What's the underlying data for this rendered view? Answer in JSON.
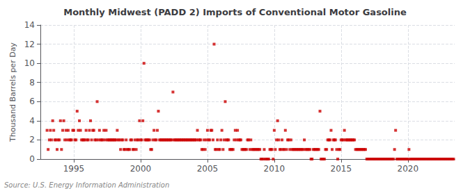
{
  "chart_data": {
    "type": "scatter",
    "title": "Monthly Midwest (PADD 2) Imports of Conventional Motor Gasoline",
    "ylabel": "Thousand Barrels per Day",
    "annotations": [
      "Source: U.S. Energy Information Administration"
    ],
    "xlim": [
      1992.5,
      2023.5
    ],
    "xticks": [
      1995,
      2000,
      2005,
      2010,
      2015,
      2020
    ],
    "ylim": [
      0,
      14
    ],
    "yticks": [
      0,
      2,
      4,
      6,
      8,
      10,
      12,
      14
    ],
    "grid": true,
    "color": "#cc0000",
    "marker": "square",
    "x": [
      1993.0,
      1993.08,
      1993.17,
      1993.25,
      1993.33,
      1993.42,
      1993.5,
      1993.58,
      1993.67,
      1993.75,
      1993.83,
      1993.92,
      1994.0,
      1994.08,
      1994.17,
      1994.25,
      1994.33,
      1994.42,
      1994.5,
      1994.58,
      1994.67,
      1994.75,
      1994.83,
      1994.92,
      1995.0,
      1995.08,
      1995.17,
      1995.25,
      1995.33,
      1995.42,
      1995.5,
      1995.58,
      1995.67,
      1995.75,
      1995.83,
      1995.92,
      1996.0,
      1996.08,
      1996.17,
      1996.25,
      1996.33,
      1996.42,
      1996.5,
      1996.58,
      1996.67,
      1996.75,
      1996.83,
      1996.92,
      1997.0,
      1997.08,
      1997.17,
      1997.25,
      1997.33,
      1997.42,
      1997.5,
      1997.58,
      1997.67,
      1997.75,
      1997.83,
      1997.92,
      1998.0,
      1998.08,
      1998.17,
      1998.25,
      1998.33,
      1998.42,
      1998.5,
      1998.58,
      1998.67,
      1998.75,
      1998.83,
      1998.92,
      1999.0,
      1999.08,
      1999.17,
      1999.25,
      1999.33,
      1999.42,
      1999.5,
      1999.58,
      1999.67,
      1999.75,
      1999.83,
      1999.92,
      2000.0,
      2000.08,
      2000.17,
      2000.25,
      2000.33,
      2000.42,
      2000.5,
      2000.58,
      2000.67,
      2000.75,
      2000.83,
      2000.92,
      2001.0,
      2001.08,
      2001.17,
      2001.25,
      2001.33,
      2001.42,
      2001.5,
      2001.58,
      2001.67,
      2001.75,
      2001.83,
      2001.92,
      2002.0,
      2002.08,
      2002.17,
      2002.25,
      2002.33,
      2002.42,
      2002.5,
      2002.58,
      2002.67,
      2002.75,
      2002.83,
      2002.92,
      2003.0,
      2003.08,
      2003.17,
      2003.25,
      2003.33,
      2003.42,
      2003.5,
      2003.58,
      2003.67,
      2003.75,
      2003.83,
      2003.92,
      2004.0,
      2004.08,
      2004.17,
      2004.25,
      2004.33,
      2004.42,
      2004.5,
      2004.58,
      2004.67,
      2004.75,
      2004.83,
      2004.92,
      2005.0,
      2005.08,
      2005.17,
      2005.25,
      2005.33,
      2005.42,
      2005.5,
      2005.58,
      2005.67,
      2005.75,
      2005.83,
      2005.92,
      2006.0,
      2006.08,
      2006.17,
      2006.25,
      2006.33,
      2006.42,
      2006.5,
      2006.58,
      2006.67,
      2006.75,
      2006.83,
      2006.92,
      2007.0,
      2007.08,
      2007.17,
      2007.25,
      2007.33,
      2007.42,
      2007.5,
      2007.58,
      2007.67,
      2007.75,
      2007.83,
      2007.92,
      2008.0,
      2008.08,
      2008.17,
      2008.25,
      2008.33,
      2008.42,
      2008.5,
      2008.58,
      2008.67,
      2008.75,
      2008.83,
      2008.92,
      2009.0,
      2009.08,
      2009.17,
      2009.25,
      2009.33,
      2009.42,
      2009.5,
      2009.58,
      2009.67,
      2009.75,
      2009.83,
      2009.92,
      2010.0,
      2010.08,
      2010.17,
      2010.25,
      2010.33,
      2010.42,
      2010.5,
      2010.58,
      2010.67,
      2010.75,
      2010.83,
      2010.92,
      2011.0,
      2011.08,
      2011.17,
      2011.25,
      2011.33,
      2011.42,
      2011.5,
      2011.58,
      2011.67,
      2011.75,
      2011.83,
      2011.92,
      2012.0,
      2012.08,
      2012.17,
      2012.25,
      2012.33,
      2012.42,
      2012.5,
      2012.58,
      2012.67,
      2012.75,
      2012.83,
      2012.92,
      2013.0,
      2013.08,
      2013.17,
      2013.25,
      2013.33,
      2013.42,
      2013.5,
      2013.58,
      2013.67,
      2013.75,
      2013.83,
      2013.92,
      2014.0,
      2014.08,
      2014.17,
      2014.25,
      2014.33,
      2014.42,
      2014.5,
      2014.58,
      2014.67,
      2014.75,
      2014.83,
      2014.92,
      2015.0,
      2015.08,
      2015.17,
      2015.25,
      2015.33,
      2015.42,
      2015.5,
      2015.58,
      2015.67,
      2015.75,
      2015.83,
      2015.92,
      2016.0,
      2016.08,
      2016.17,
      2016.25,
      2016.33,
      2016.42,
      2016.5,
      2016.58,
      2016.67,
      2016.75,
      2016.83,
      2016.92,
      2017.0,
      2017.08,
      2017.17,
      2017.25,
      2017.33,
      2017.42,
      2017.5,
      2017.58,
      2017.67,
      2017.75,
      2017.83,
      2017.92,
      2018.0,
      2018.08,
      2018.17,
      2018.25,
      2018.33,
      2018.42,
      2018.5,
      2018.58,
      2018.67,
      2018.75,
      2018.83,
      2018.92,
      2019.0,
      2019.08,
      2019.17,
      2019.25,
      2019.33,
      2019.42,
      2019.5,
      2019.58,
      2019.67,
      2019.75,
      2019.83,
      2019.92,
      2020.0,
      2020.08,
      2020.17,
      2020.25,
      2020.33,
      2020.42,
      2020.5,
      2020.58,
      2020.67,
      2020.75,
      2020.83,
      2020.92,
      2021.0,
      2021.08,
      2021.17,
      2021.25,
      2021.33,
      2021.42,
      2021.5,
      2021.58,
      2021.67,
      2021.75,
      2021.83,
      2021.92,
      2022.0,
      2022.08,
      2022.17,
      2022.25,
      2022.33,
      2022.42,
      2022.5,
      2022.58,
      2022.67,
      2022.75,
      2022.83,
      2022.92,
      2023.0,
      2023.08,
      2023.17,
      2023.25,
      2023.33,
      2023.42
    ],
    "values": [
      3,
      1,
      2,
      3,
      2,
      4,
      3,
      2,
      2,
      1,
      2,
      2,
      4,
      1,
      3,
      4,
      2,
      3,
      2,
      3,
      2,
      2,
      2,
      3,
      3,
      2,
      2,
      5,
      3,
      4,
      3,
      2,
      2,
      2,
      2,
      3,
      2,
      2,
      3,
      4,
      2,
      3,
      3,
      2,
      2,
      6,
      2,
      3,
      2,
      2,
      2,
      3,
      2,
      3,
      2,
      2,
      2,
      2,
      2,
      2,
      2,
      2,
      2,
      3,
      2,
      2,
      1,
      2,
      2,
      1,
      1,
      2,
      1,
      1,
      1,
      2,
      2,
      1,
      1,
      2,
      1,
      2,
      2,
      4,
      2,
      2,
      4,
      10,
      2,
      2,
      2,
      2,
      2,
      1,
      1,
      2,
      3,
      2,
      2,
      3,
      5,
      2,
      2,
      2,
      2,
      2,
      2,
      2,
      2,
      2,
      2,
      2,
      2,
      7,
      2,
      2,
      2,
      2,
      2,
      2,
      2,
      2,
      2,
      2,
      2,
      2,
      2,
      2,
      2,
      2,
      2,
      2,
      2,
      2,
      2,
      3,
      2,
      2,
      2,
      1,
      1,
      2,
      1,
      2,
      3,
      2,
      2,
      3,
      3,
      2,
      12,
      1,
      1,
      2,
      1,
      1,
      2,
      3,
      1,
      2,
      6,
      2,
      2,
      2,
      1,
      1,
      1,
      1,
      2,
      3,
      2,
      3,
      2,
      2,
      2,
      1,
      1,
      1,
      1,
      1,
      2,
      2,
      1,
      2,
      1,
      1,
      1,
      1,
      1,
      1,
      1,
      1,
      0,
      0,
      0,
      1,
      0,
      0,
      0,
      0,
      1,
      1,
      1,
      0,
      3,
      1,
      2,
      4,
      2,
      1,
      1,
      2,
      1,
      1,
      3,
      1,
      2,
      2,
      1,
      2,
      1,
      1,
      1,
      1,
      1,
      1,
      1,
      1,
      1,
      1,
      1,
      2,
      1,
      1,
      1,
      1,
      1,
      0,
      0,
      1,
      1,
      1,
      1,
      1,
      1,
      5,
      0,
      0,
      0,
      0,
      1,
      1,
      2,
      2,
      2,
      3,
      1,
      2,
      2,
      2,
      1,
      0,
      1,
      1,
      2,
      2,
      2,
      3,
      2,
      2,
      2,
      2,
      2,
      2,
      2,
      2,
      2,
      1,
      1,
      1,
      1,
      1,
      1,
      1,
      1,
      1,
      1,
      0,
      0,
      0,
      0,
      0,
      0,
      0,
      0,
      0,
      0,
      0,
      0,
      0,
      0,
      0,
      0,
      0,
      0,
      0,
      0,
      0,
      0,
      0,
      0,
      0,
      1,
      3,
      0,
      0,
      0,
      0,
      0,
      0,
      0,
      0,
      0,
      0,
      0,
      1,
      0,
      0,
      0,
      0,
      0,
      0,
      0,
      0,
      0,
      0,
      0,
      0,
      0,
      0,
      0,
      0,
      0,
      0,
      0,
      0,
      0,
      0,
      0,
      0,
      0,
      0,
      0,
      0,
      0,
      0,
      0,
      0,
      0,
      0,
      0,
      0,
      0,
      0,
      0,
      0
    ]
  }
}
